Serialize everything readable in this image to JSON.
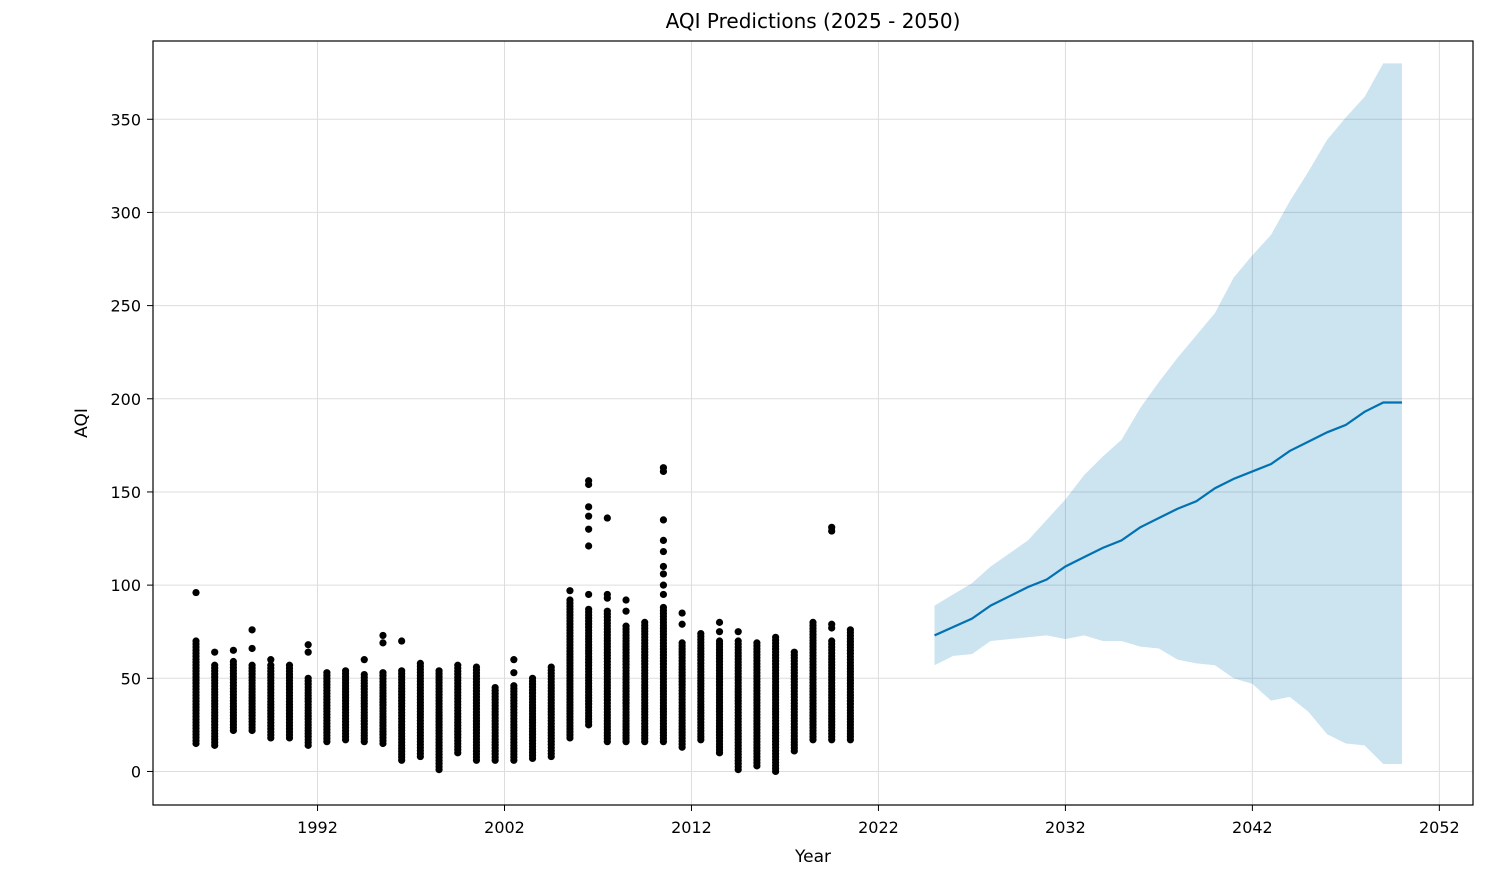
{
  "chart_data": {
    "type": "scatter",
    "title": "AQI Predictions (2025 - 2050)",
    "xlabel": "Year",
    "ylabel": "AQI",
    "xlim": [
      1983.2,
      2053.8
    ],
    "ylim": [
      -18,
      392
    ],
    "x_ticks": [
      1992,
      2002,
      2012,
      2022,
      2032,
      2042,
      2052
    ],
    "y_ticks": [
      0,
      50,
      100,
      150,
      200,
      250,
      300,
      350
    ],
    "grid": true,
    "colors": {
      "observed_points": "#000000",
      "forecast_line": "#0072B2",
      "uncertainty_band": "#0072B2",
      "grid": "#dddddd"
    },
    "observed_by_year": [
      {
        "year": 1985,
        "min": 15,
        "max": 70,
        "outliers": [
          96
        ]
      },
      {
        "year": 1986,
        "min": 14,
        "max": 57,
        "outliers": [
          64
        ]
      },
      {
        "year": 1987,
        "min": 22,
        "max": 59,
        "outliers": [
          65
        ]
      },
      {
        "year": 1988,
        "min": 22,
        "max": 57,
        "outliers": [
          66,
          76
        ]
      },
      {
        "year": 1989,
        "min": 18,
        "max": 57,
        "outliers": [
          60
        ]
      },
      {
        "year": 1990,
        "min": 18,
        "max": 57,
        "outliers": []
      },
      {
        "year": 1991,
        "min": 14,
        "max": 50,
        "outliers": [
          64,
          68
        ]
      },
      {
        "year": 1992,
        "min": 16,
        "max": 53,
        "outliers": []
      },
      {
        "year": 1993,
        "min": 17,
        "max": 54,
        "outliers": []
      },
      {
        "year": 1994,
        "min": 16,
        "max": 52,
        "outliers": [
          60
        ]
      },
      {
        "year": 1995,
        "min": 15,
        "max": 53,
        "outliers": [
          69,
          73
        ]
      },
      {
        "year": 1996,
        "min": 6,
        "max": 54,
        "outliers": [
          70
        ]
      },
      {
        "year": 1997,
        "min": 8,
        "max": 58,
        "outliers": []
      },
      {
        "year": 1998,
        "min": 1,
        "max": 54,
        "outliers": []
      },
      {
        "year": 1999,
        "min": 10,
        "max": 57,
        "outliers": []
      },
      {
        "year": 2000,
        "min": 6,
        "max": 56,
        "outliers": []
      },
      {
        "year": 2001,
        "min": 6,
        "max": 45,
        "outliers": []
      },
      {
        "year": 2002,
        "min": 6,
        "max": 46,
        "outliers": [
          53,
          60
        ]
      },
      {
        "year": 2003,
        "min": 7,
        "max": 50,
        "outliers": []
      },
      {
        "year": 2004,
        "min": 8,
        "max": 56,
        "outliers": []
      },
      {
        "year": 2005,
        "min": 18,
        "max": 92,
        "outliers": [
          97
        ]
      },
      {
        "year": 2006,
        "min": 25,
        "max": 87,
        "outliers": [
          95,
          121,
          130,
          137,
          142,
          154,
          156
        ]
      },
      {
        "year": 2007,
        "min": 16,
        "max": 86,
        "outliers": [
          93,
          95,
          136
        ]
      },
      {
        "year": 2008,
        "min": 16,
        "max": 78,
        "outliers": [
          86,
          92
        ]
      },
      {
        "year": 2009,
        "min": 16,
        "max": 80,
        "outliers": []
      },
      {
        "year": 2010,
        "min": 16,
        "max": 88,
        "outliers": [
          95,
          100,
          106,
          110,
          118,
          124,
          135,
          161,
          163
        ]
      },
      {
        "year": 2011,
        "min": 13,
        "max": 69,
        "outliers": [
          79,
          85
        ]
      },
      {
        "year": 2012,
        "min": 17,
        "max": 74,
        "outliers": []
      },
      {
        "year": 2013,
        "min": 10,
        "max": 70,
        "outliers": [
          75,
          80
        ]
      },
      {
        "year": 2014,
        "min": 1,
        "max": 70,
        "outliers": [
          75
        ]
      },
      {
        "year": 2015,
        "min": 3,
        "max": 69,
        "outliers": []
      },
      {
        "year": 2016,
        "min": 0,
        "max": 72,
        "outliers": []
      },
      {
        "year": 2017,
        "min": 11,
        "max": 64,
        "outliers": []
      },
      {
        "year": 2018,
        "min": 17,
        "max": 80,
        "outliers": []
      },
      {
        "year": 2019,
        "min": 17,
        "max": 70,
        "outliers": [
          77,
          79,
          129,
          131
        ]
      },
      {
        "year": 2020,
        "min": 17,
        "max": 76,
        "outliers": []
      }
    ],
    "forecast": {
      "x": [
        2025,
        2026,
        2027,
        2028,
        2029,
        2030,
        2031,
        2032,
        2033,
        2034,
        2035,
        2036,
        2037,
        2038,
        2039,
        2040,
        2041,
        2042,
        2043,
        2044,
        2045,
        2046,
        2047,
        2048,
        2049,
        2050
      ],
      "yhat": [
        73,
        77.5,
        82,
        89,
        94,
        99,
        103,
        110,
        115,
        120,
        124,
        131,
        136,
        141,
        145,
        152,
        157,
        161,
        165,
        172,
        177,
        182,
        186,
        193,
        198,
        198
      ],
      "upper": [
        89,
        95,
        101,
        110,
        117,
        124,
        135,
        146,
        159,
        169,
        178,
        195,
        209,
        222,
        234,
        246,
        265,
        277,
        288,
        306,
        322,
        339,
        351,
        362,
        380,
        380
      ],
      "lower": [
        57,
        62,
        63,
        70,
        71,
        72,
        73,
        71,
        73,
        70,
        70,
        67,
        66,
        60,
        58,
        57,
        50,
        47,
        38,
        40,
        32,
        20,
        15,
        14,
        4,
        4
      ]
    }
  }
}
